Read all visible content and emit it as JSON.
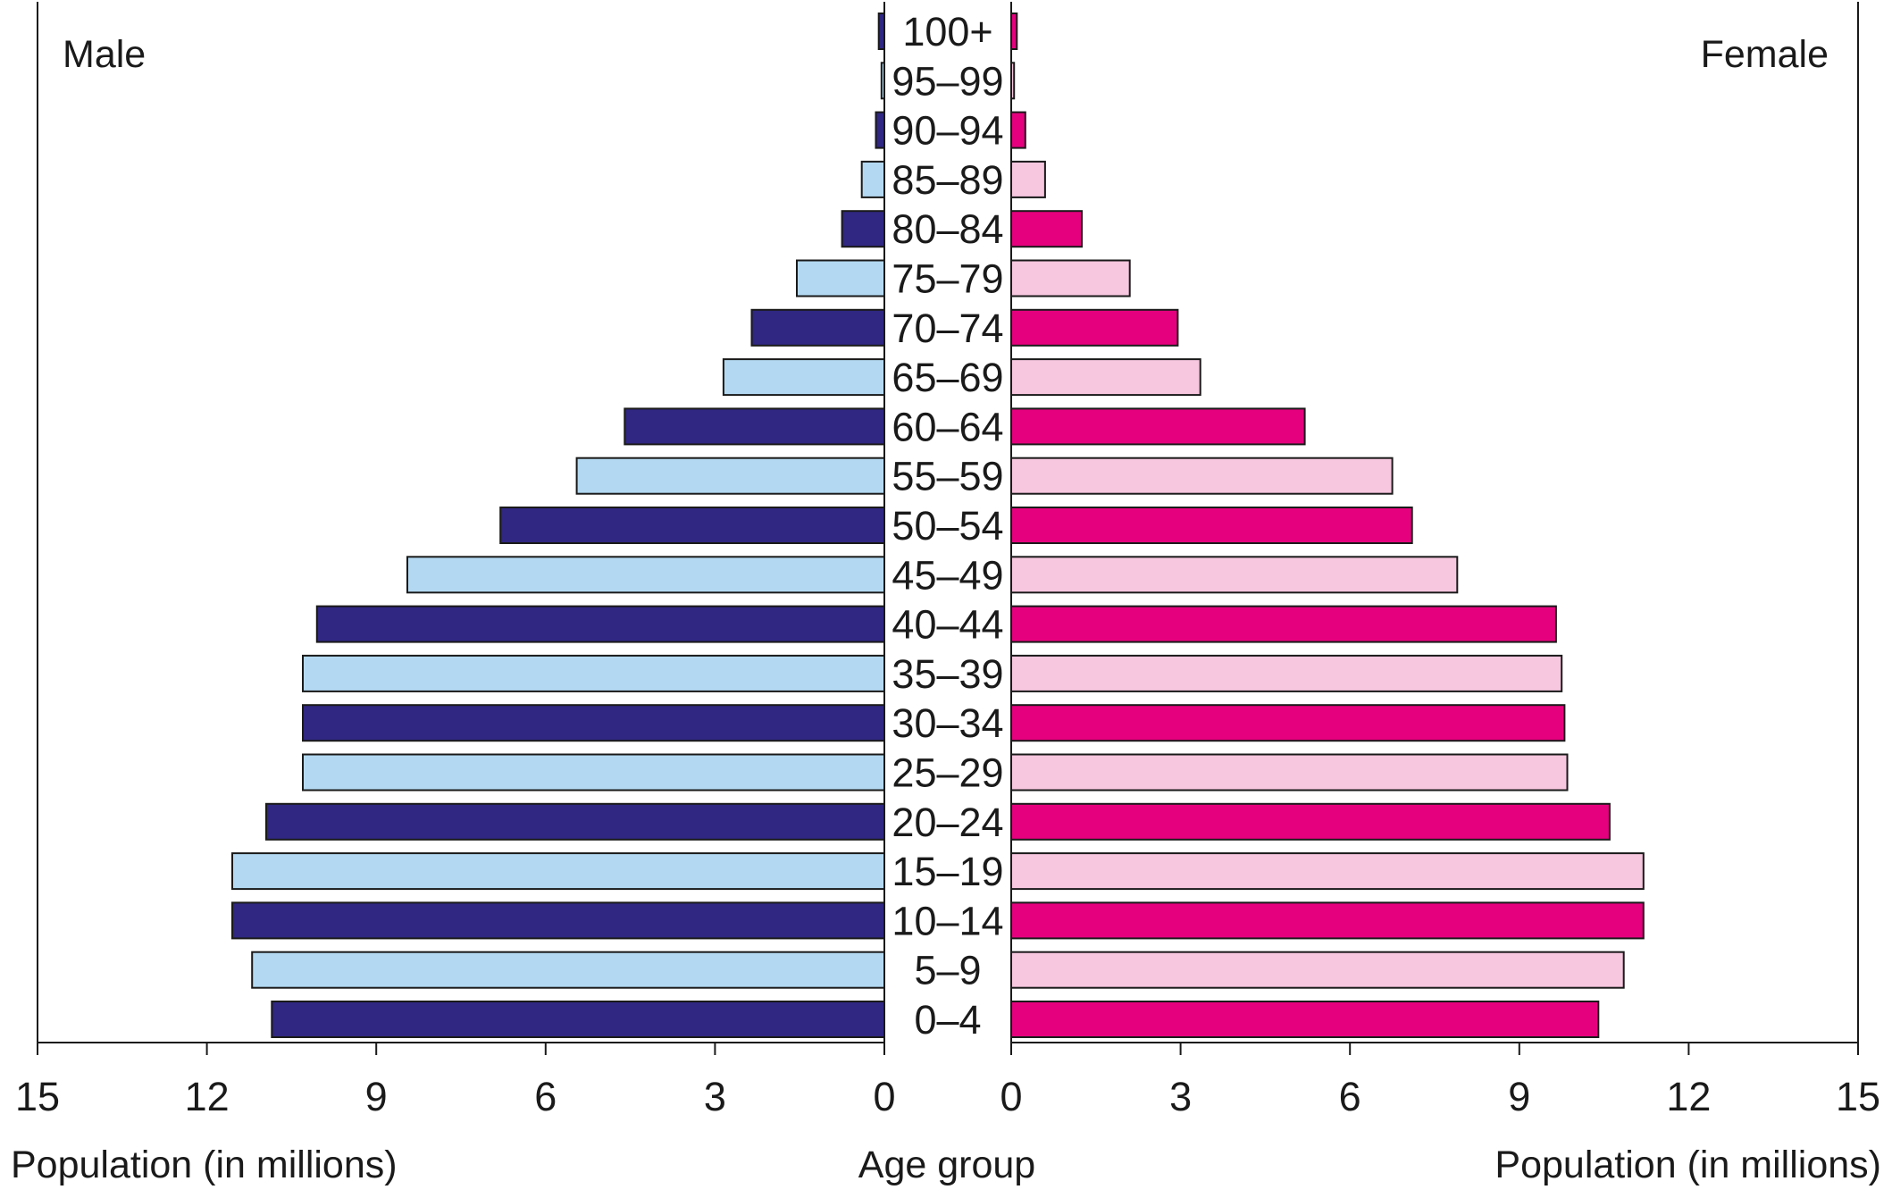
{
  "chart_data": {
    "type": "bar",
    "subtype": "population-pyramid",
    "left_panel_label": "Male",
    "right_panel_label": "Female",
    "xlabel_left": "Population (in millions)",
    "xlabel_right": "Population (in millions)",
    "center_label": "Age group",
    "xlim": [
      0,
      15
    ],
    "xticks": [
      0,
      3,
      6,
      9,
      12,
      15
    ],
    "grid": false,
    "categories": [
      "100+",
      "95–99",
      "90–94",
      "85–89",
      "80–84",
      "75–79",
      "70–74",
      "65–69",
      "60–64",
      "55–59",
      "50–54",
      "45–49",
      "40–44",
      "35–39",
      "30–34",
      "25–29",
      "20–24",
      "15–19",
      "10–14",
      "5–9",
      "0–4"
    ],
    "series": [
      {
        "name": "Male",
        "colors": [
          "#2f2781",
          "#b3d9f2"
        ],
        "values": [
          0.1,
          0.05,
          0.15,
          0.4,
          0.75,
          1.55,
          2.35,
          2.85,
          4.6,
          5.45,
          6.8,
          8.45,
          10.05,
          10.3,
          10.3,
          10.3,
          10.95,
          11.55,
          11.55,
          11.2,
          10.85
        ]
      },
      {
        "name": "Female",
        "colors": [
          "#e5007d",
          "#f7c6df"
        ],
        "values": [
          0.1,
          0.05,
          0.25,
          0.6,
          1.25,
          2.1,
          2.95,
          3.35,
          5.2,
          6.75,
          7.1,
          7.9,
          9.65,
          9.75,
          9.8,
          9.85,
          10.6,
          11.2,
          11.2,
          10.85,
          10.4
        ]
      }
    ]
  }
}
